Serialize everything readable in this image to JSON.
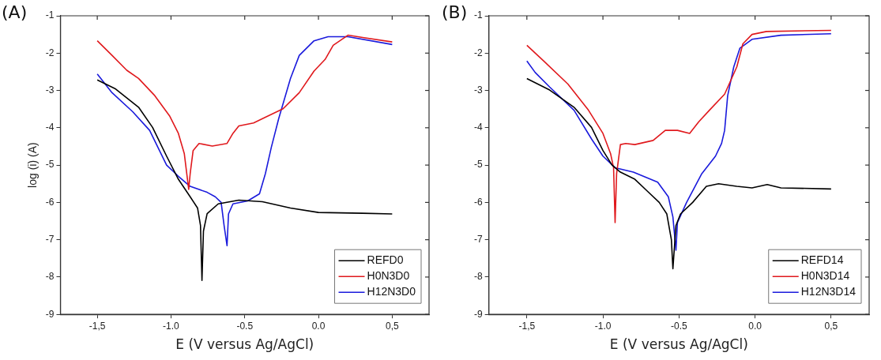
{
  "chart_data": [
    {
      "type": "line",
      "title": "(A)",
      "xlabel": "E (V versus Ag/AgCl)",
      "ylabel": "log (i) (A)",
      "xlim": [
        -1.75,
        0.75
      ],
      "xticks": [
        {
          "value": -1.5,
          "label": "-1,5"
        },
        {
          "value": -1.0,
          "label": "-1.0"
        },
        {
          "value": -0.5,
          "label": "-0.5"
        },
        {
          "value": 0,
          "label": "0.0"
        },
        {
          "value": 0.5,
          "label": "0,5"
        }
      ],
      "ylim": [
        -9,
        -1
      ],
      "yticks": [
        -9,
        -8,
        -7,
        -6,
        -5,
        -4,
        -3,
        -2,
        -1
      ],
      "grid": false,
      "legend": "bottom right",
      "marker": "none",
      "line_style": "solid",
      "series": [
        {
          "name": "REFD0",
          "color": "#000000",
          "x": [
            -1.5,
            -1.38,
            -1.22,
            -1.125,
            -1.03,
            -0.95,
            -0.87,
            -0.82,
            -0.8,
            -0.79,
            -0.78,
            -0.755,
            -0.68,
            -0.54,
            -0.38,
            -0.19,
            0.0,
            0.3,
            0.5
          ],
          "values": [
            -2.72,
            -2.95,
            -3.45,
            -3.99,
            -4.76,
            -5.38,
            -5.85,
            -6.15,
            -6.62,
            -8.09,
            -6.77,
            -6.3,
            -6.04,
            -5.94,
            -5.98,
            -6.15,
            -6.27,
            -6.29,
            -6.31
          ]
        },
        {
          "name": "H0N3D0",
          "color": "#e0191d",
          "x": [
            -1.5,
            -1.4,
            -1.3,
            -1.22,
            -1.11,
            -1.01,
            -0.95,
            -0.91,
            -0.88,
            -0.87,
            -0.85,
            -0.81,
            -0.72,
            -0.62,
            -0.58,
            -0.54,
            -0.44,
            -0.36,
            -0.24,
            -0.13,
            -0.03,
            0.045,
            0.1,
            0.2,
            0.3,
            0.5
          ],
          "values": [
            -1.67,
            -2.06,
            -2.46,
            -2.68,
            -3.14,
            -3.68,
            -4.15,
            -4.69,
            -5.65,
            -5.23,
            -4.61,
            -4.42,
            -4.49,
            -4.42,
            -4.15,
            -3.95,
            -3.87,
            -3.72,
            -3.49,
            -3.06,
            -2.48,
            -2.17,
            -1.79,
            -1.52,
            -1.58,
            -1.7
          ]
        },
        {
          "name": "H12N3D0",
          "color": "#1a1adc",
          "x": [
            -1.5,
            -1.4,
            -1.26,
            -1.145,
            -1.03,
            -0.95,
            -0.87,
            -0.755,
            -0.7,
            -0.66,
            -0.64,
            -0.62,
            -0.61,
            -0.58,
            -0.48,
            -0.4,
            -0.36,
            -0.32,
            -0.27,
            -0.19,
            -0.13,
            -0.03,
            0.065,
            0.2,
            0.5
          ],
          "values": [
            -2.56,
            -3.06,
            -3.57,
            -4.07,
            -5.0,
            -5.3,
            -5.57,
            -5.73,
            -5.85,
            -6.0,
            -6.62,
            -7.16,
            -6.31,
            -6.04,
            -5.96,
            -5.77,
            -5.23,
            -4.53,
            -3.76,
            -2.68,
            -2.06,
            -1.67,
            -1.56,
            -1.56,
            -1.77
          ]
        }
      ]
    },
    {
      "type": "line",
      "title": "(B)",
      "xlabel": "E (V versus Ag/AgCl)",
      "xlim": [
        -1.75,
        0.75
      ],
      "xticks": [
        {
          "value": -1.5,
          "label": "-1,5"
        },
        {
          "value": -1.0,
          "label": "-1.0"
        },
        {
          "value": -0.5,
          "label": "-0.5"
        },
        {
          "value": 0,
          "label": "0.0"
        },
        {
          "value": 0.5,
          "label": "0,5"
        }
      ],
      "ylim": [
        -9,
        -1
      ],
      "yticks": [
        -9,
        -8,
        -7,
        -6,
        -5,
        -4,
        -3,
        -2,
        -1
      ],
      "grid": false,
      "legend": "bottom right",
      "marker": "none",
      "line_style": "solid",
      "series": [
        {
          "name": "REFD14",
          "color": "#000000",
          "x": [
            -1.5,
            -1.35,
            -1.19,
            -1.075,
            -1.0,
            -0.94,
            -0.885,
            -0.79,
            -0.71,
            -0.63,
            -0.58,
            -0.55,
            -0.54,
            -0.52,
            -0.49,
            -0.41,
            -0.32,
            -0.24,
            -0.12,
            -0.02,
            0.08,
            0.17,
            0.5
          ],
          "values": [
            -2.68,
            -2.99,
            -3.45,
            -3.99,
            -4.61,
            -5.0,
            -5.19,
            -5.38,
            -5.69,
            -6.0,
            -6.31,
            -7.0,
            -7.78,
            -6.62,
            -6.31,
            -6.0,
            -5.57,
            -5.5,
            -5.57,
            -5.61,
            -5.52,
            -5.61,
            -5.64
          ]
        },
        {
          "name": "H0N3D14",
          "color": "#e0191d",
          "x": [
            -1.5,
            -1.39,
            -1.23,
            -1.095,
            -1.0,
            -0.95,
            -0.93,
            -0.92,
            -0.91,
            -0.885,
            -0.85,
            -0.79,
            -0.67,
            -0.59,
            -0.51,
            -0.43,
            -0.37,
            -0.3,
            -0.2,
            -0.12,
            -0.08,
            -0.02,
            0.075,
            0.5
          ],
          "values": [
            -1.79,
            -2.21,
            -2.83,
            -3.53,
            -4.15,
            -4.69,
            -5.07,
            -6.54,
            -5.23,
            -4.45,
            -4.42,
            -4.45,
            -4.34,
            -4.07,
            -4.07,
            -4.15,
            -3.84,
            -3.53,
            -3.1,
            -2.37,
            -1.75,
            -1.5,
            -1.42,
            -1.39
          ]
        },
        {
          "name": "H12N3D14",
          "color": "#1a1adc",
          "x": [
            -1.5,
            -1.445,
            -1.35,
            -1.19,
            -1.075,
            -1.0,
            -0.92,
            -0.8,
            -0.64,
            -0.57,
            -0.54,
            -0.52,
            -0.51,
            -0.45,
            -0.35,
            -0.26,
            -0.22,
            -0.2,
            -0.18,
            -0.14,
            -0.1,
            -0.02,
            0.17,
            0.5
          ],
          "values": [
            -2.21,
            -2.52,
            -2.91,
            -3.53,
            -4.3,
            -4.76,
            -5.07,
            -5.19,
            -5.46,
            -5.85,
            -6.39,
            -7.28,
            -6.54,
            -6.0,
            -5.23,
            -4.76,
            -4.42,
            -4.07,
            -3.14,
            -2.37,
            -1.87,
            -1.63,
            -1.52,
            -1.48
          ]
        }
      ]
    }
  ]
}
